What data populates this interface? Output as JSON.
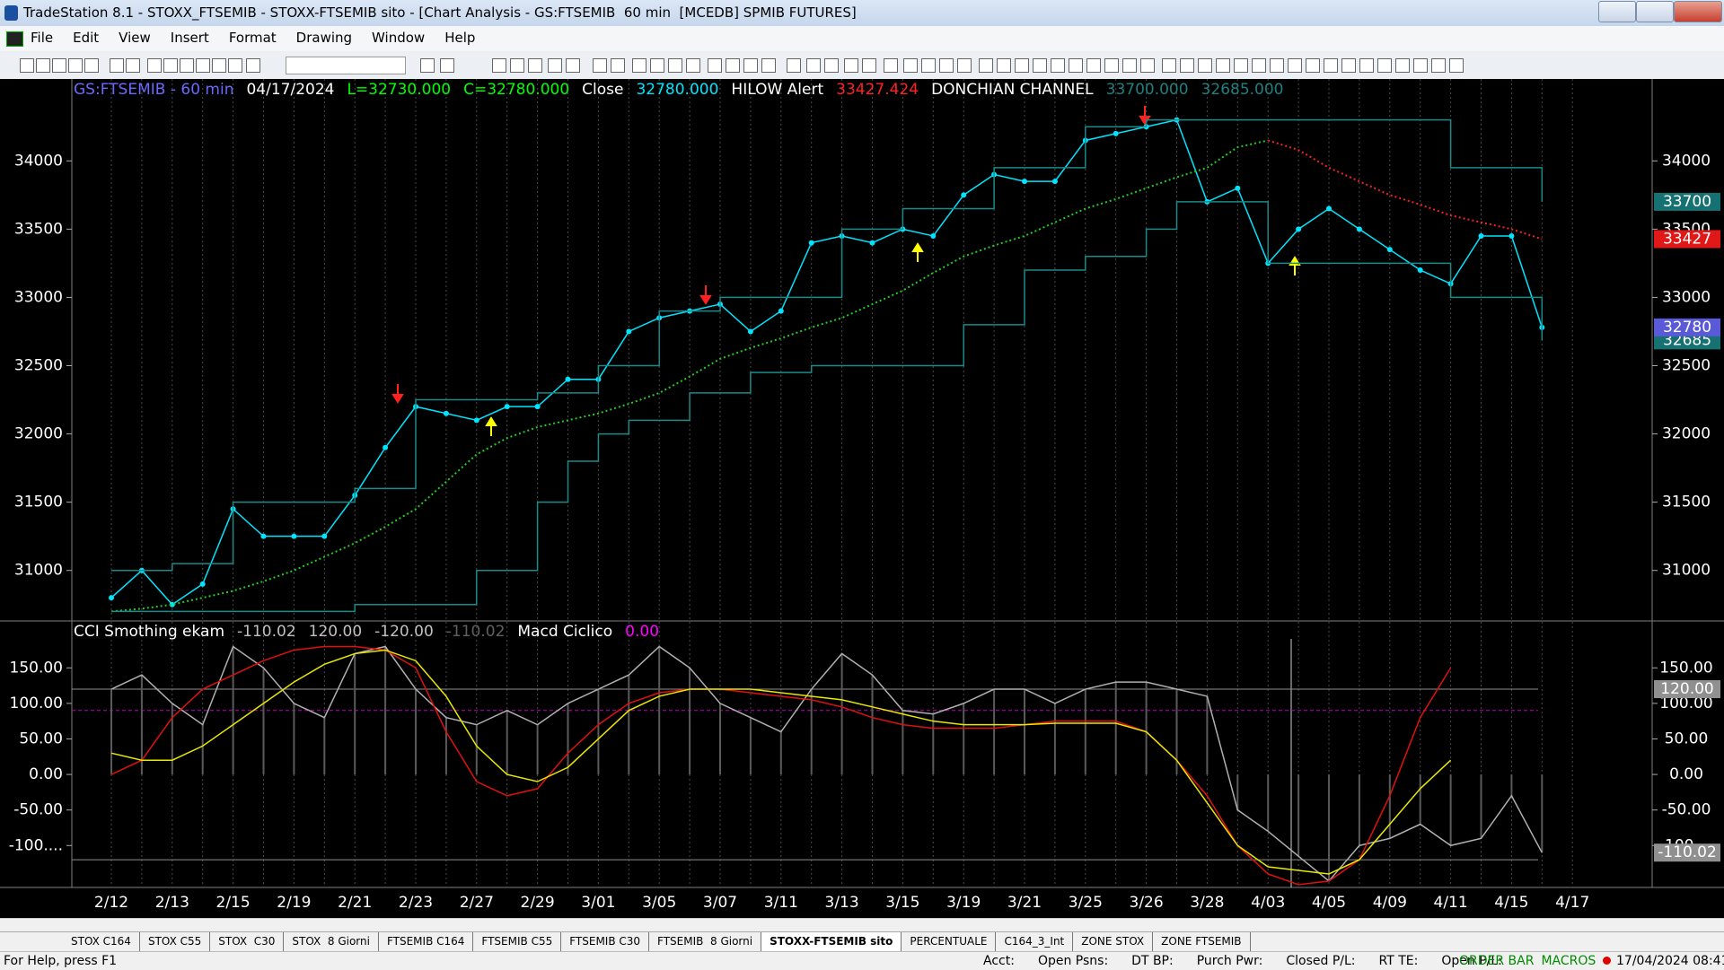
{
  "window": {
    "title": "TradeStation 8.1 - STOXX_FTSEMIB - STOXX-FTSEMIB sito - [Chart Analysis - GS:FTSEMIB  60 min  [MCEDB] SPMIB FUTURES]"
  },
  "menu": [
    "File",
    "Edit",
    "View",
    "Insert",
    "Format",
    "Drawing",
    "Window",
    "Help"
  ],
  "chart_data": [
    {
      "type": "line",
      "header": [
        {
          "text": "GS:FTSEMIB - 60 min",
          "color": "#6a6aff"
        },
        {
          "text": "04/17/2024",
          "color": "#ffffff"
        },
        {
          "text": "L=32730.000",
          "color": "#00ff00"
        },
        {
          "text": "C=32780.000",
          "color": "#00ff00"
        },
        {
          "text": "Close",
          "color": "#ffffff"
        },
        {
          "text": "32780.000",
          "color": "#00e5ff"
        },
        {
          "text": "HILOW Alert",
          "color": "#ffffff"
        },
        {
          "text": "33427.424",
          "color": "#ff2020"
        },
        {
          "text": "DONCHIAN CHANNEL",
          "color": "#ffffff"
        },
        {
          "text": "33700.000",
          "color": "#1e8080"
        },
        {
          "text": "32685.000",
          "color": "#1e8080"
        }
      ],
      "categories": [
        "2/12",
        null,
        "2/13",
        null,
        "2/15",
        null,
        "2/19",
        null,
        "2/21",
        null,
        "2/23",
        null,
        "2/27",
        null,
        "2/29",
        null,
        "3/01",
        null,
        "3/05",
        null,
        "3/07",
        null,
        "3/11",
        null,
        "3/13",
        null,
        "3/15",
        null,
        "3/19",
        null,
        "3/21",
        null,
        "3/25",
        null,
        "3/26",
        null,
        "3/28",
        null,
        "4/03",
        null,
        "4/05",
        null,
        "4/09",
        null,
        "4/11",
        null,
        "4/15",
        null,
        "4/17"
      ],
      "series": [
        {
          "name": "Close",
          "style": "dots-line",
          "color": "#00e5ff",
          "values": [
            30800,
            31000,
            30750,
            30900,
            31450,
            31250,
            31250,
            31250,
            31550,
            31900,
            32200,
            32150,
            32100,
            32200,
            32200,
            32400,
            32400,
            32750,
            32850,
            32900,
            32950,
            32750,
            32900,
            33400,
            33450,
            33400,
            33500,
            33450,
            33750,
            33900,
            33850,
            33850,
            34150,
            34200,
            34250,
            34300,
            33700,
            33800,
            33250,
            33500,
            33650,
            33500,
            33350,
            33200,
            33100,
            33450,
            33450,
            32780,
            null
          ]
        },
        {
          "name": "HILOW Alert",
          "style": "dotted",
          "color": "#22cc22",
          "down_color": "#ff2020",
          "values": [
            30700,
            30720,
            30750,
            30800,
            30850,
            30920,
            31000,
            31100,
            31200,
            31320,
            31450,
            31650,
            31850,
            31970,
            32050,
            32100,
            32150,
            32220,
            32300,
            32420,
            32550,
            32630,
            32700,
            32780,
            32850,
            32950,
            33050,
            33180,
            33300,
            33380,
            33450,
            33550,
            33650,
            33720,
            33800,
            33880,
            33950,
            34100,
            34150,
            34080,
            33950,
            33850,
            33750,
            33680,
            33600,
            33550,
            33500,
            33427,
            null
          ]
        },
        {
          "name": "DONCHIAN CHANNEL",
          "style": "step",
          "color": "#1a8a8a",
          "values": [
            31000,
            31000,
            31050,
            31050,
            31500,
            31500,
            31500,
            31500,
            31600,
            31600,
            32250,
            32250,
            32250,
            32250,
            32300,
            32300,
            32500,
            32500,
            32900,
            32900,
            33000,
            33000,
            33000,
            33000,
            33500,
            33500,
            33650,
            33650,
            33650,
            33950,
            33950,
            33950,
            34250,
            34250,
            34300,
            34300,
            34300,
            34300,
            34300,
            34300,
            34300,
            34300,
            34300,
            34300,
            33950,
            33950,
            33950,
            33700,
            null
          ]
        },
        {
          "name": "DONCHIAN CHANNEL",
          "style": "step",
          "color": "#1a8a8a",
          "values": [
            30700,
            30700,
            30700,
            30700,
            30700,
            30700,
            30700,
            30700,
            30750,
            30750,
            30750,
            30750,
            31000,
            31000,
            31500,
            31800,
            32000,
            32100,
            32100,
            32300,
            32300,
            32450,
            32450,
            32500,
            32500,
            32500,
            32500,
            32500,
            32800,
            32800,
            33200,
            33200,
            33300,
            33300,
            33500,
            33700,
            33700,
            33700,
            33250,
            33250,
            33250,
            33250,
            33250,
            33250,
            33000,
            33000,
            33000,
            32685,
            null
          ]
        }
      ],
      "ylim": [
        30630,
        34600
      ],
      "yticks": [
        31000,
        31500,
        32000,
        32500,
        33000,
        33500,
        34000
      ],
      "badges": [
        {
          "value": 33700,
          "color": "#167272"
        },
        {
          "value": 33427,
          "color": "#e01818"
        },
        {
          "value": 32685,
          "color": "#167272"
        },
        {
          "value": 32780,
          "color": "#5a5ad8"
        }
      ],
      "grid": true
    },
    {
      "type": "line",
      "header": [
        {
          "text": "CCI Smothing ekam",
          "color": "#ffffff"
        },
        {
          "text": "-110.02",
          "color": "#c0c0c0"
        },
        {
          "text": "120.00",
          "color": "#c0c0c0"
        },
        {
          "text": "-120.00",
          "color": "#c0c0c0"
        },
        {
          "text": "-110.02",
          "color": "#606060"
        },
        {
          "text": "Macd Ciclico",
          "color": "#ffffff"
        },
        {
          "text": "0.00",
          "color": "#ff00ff"
        }
      ],
      "series": [
        {
          "name": "CCI Smothing ekam",
          "style": "histogram-line",
          "color": "#b0b0b0",
          "values": [
            120,
            140,
            100,
            70,
            180,
            150,
            100,
            80,
            170,
            180,
            120,
            80,
            70,
            90,
            70,
            100,
            120,
            140,
            180,
            150,
            100,
            80,
            60,
            120,
            170,
            140,
            90,
            85,
            100,
            120,
            120,
            100,
            120,
            130,
            130,
            120,
            110,
            -50,
            -80,
            -115,
            -150,
            -100,
            -90,
            -70,
            -100,
            -90,
            -30,
            -110.02,
            null
          ]
        },
        {
          "name": "Macd Ciclico",
          "style": "line",
          "color": "#e01010",
          "values": [
            0,
            20,
            80,
            120,
            140,
            160,
            175,
            180,
            180,
            175,
            150,
            60,
            -10,
            -30,
            -20,
            30,
            70,
            100,
            115,
            120,
            120,
            115,
            110,
            105,
            95,
            80,
            70,
            65,
            65,
            65,
            70,
            75,
            75,
            75,
            60,
            20,
            -30,
            -100,
            -140,
            -155,
            -150,
            -120,
            -30,
            80,
            150,
            null,
            null,
            null,
            null
          ]
        },
        {
          "name": "Macd Ciclico",
          "style": "line",
          "color": "#e8e800",
          "values": [
            30,
            20,
            20,
            40,
            70,
            100,
            130,
            155,
            170,
            175,
            160,
            110,
            40,
            0,
            -10,
            10,
            50,
            90,
            110,
            120,
            120,
            120,
            115,
            110,
            105,
            95,
            85,
            75,
            70,
            70,
            70,
            72,
            72,
            72,
            60,
            20,
            -40,
            -100,
            -130,
            -135,
            -140,
            -120,
            -70,
            -20,
            20,
            null,
            null,
            null,
            null
          ]
        }
      ],
      "levels": [
        {
          "value": 120,
          "color": "#909090"
        },
        {
          "value": -120,
          "color": "#909090"
        },
        {
          "value": 90,
          "color": "#c000c0"
        }
      ],
      "ylim": [
        -159,
        216
      ],
      "yticks": [
        {
          "value": 150,
          "label": "150.00"
        },
        {
          "value": 100,
          "label": "100.00"
        },
        {
          "value": 50,
          "label": "50.00"
        },
        {
          "value": 0,
          "label": "0.00"
        },
        {
          "value": -50,
          "label": "-50.00"
        },
        {
          "value": -100,
          "label": "-100...."
        }
      ],
      "badges": [
        {
          "value": 120,
          "label": "120.00",
          "color": "#909090"
        },
        {
          "value": -110.02,
          "label": "-110.02",
          "color": "#909090"
        }
      ]
    }
  ],
  "tabs": [
    "STOX C164",
    "STOX C55",
    "STOX  C30",
    "STOX  8 Giorni",
    "FTSEMIB C164",
    "FTSEMIB C55",
    "FTSEMIB C30",
    "FTSEMIB  8 Giorni",
    "STOXX-FTSEMIB sito",
    "PERCENTUALE",
    "C164_3_Int",
    "ZONE STOX",
    "ZONE FTSEMIB"
  ],
  "active_tab": 8,
  "status": {
    "help": "For Help, press F1",
    "fields": [
      "Acct:",
      "Open Psns:",
      "DT BP:",
      "Purch Pwr:",
      "Closed P/L:",
      "RT TE:",
      "Open P/L:"
    ],
    "indicators": [
      "ORDER BAR",
      "MACROS"
    ],
    "clock": "17/04/2024 08:41"
  }
}
